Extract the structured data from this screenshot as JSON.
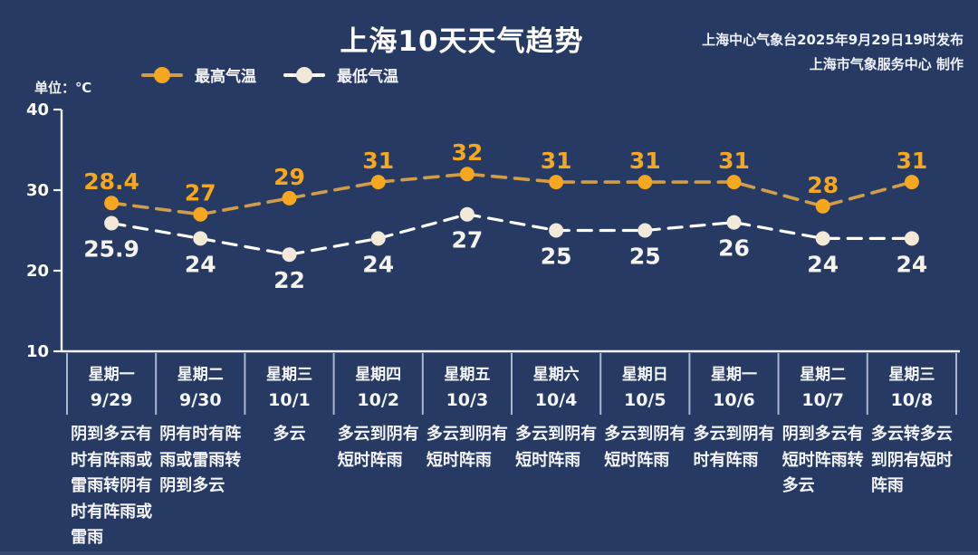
{
  "header": {
    "title": "上海10天天气趋势",
    "attribution_line1": "上海中心气象台2025年9月29日19时发布",
    "attribution_line2": "上海市气象服务中心 制作"
  },
  "unit_label": "单位：℃",
  "legend": {
    "high_label": "最高气温",
    "low_label": "最低气温"
  },
  "colors": {
    "background": "#263a64",
    "text": "#ffffff",
    "axis": "#f2f3f7",
    "divider": "#c3cde2",
    "high_marker": "#f5a71f",
    "high_line": "#d09e4b",
    "high_label": "#f5a71f",
    "low_marker": "#f2e9d8",
    "low_line": "#ffffff",
    "low_label": "#f5f3ee"
  },
  "chart_data": {
    "type": "line",
    "title": "上海10天天气趋势",
    "ylabel": "单位：℃",
    "ylim": [
      10,
      40
    ],
    "yticks": [
      40,
      30,
      20,
      10
    ],
    "grid": false,
    "legend_position": "top-left",
    "line_style": "dashed",
    "categories": [
      "9/29",
      "9/30",
      "10/1",
      "10/2",
      "10/3",
      "10/4",
      "10/5",
      "10/6",
      "10/7",
      "10/8"
    ],
    "series": [
      {
        "name": "最高气温",
        "values": [
          28.4,
          27,
          29,
          31,
          32,
          31,
          31,
          31,
          28,
          31
        ],
        "marker_color": "#f5a71f",
        "line_color": "#d09e4b",
        "label_color": "#f5a71f"
      },
      {
        "name": "最低气温",
        "values": [
          25.9,
          24,
          22,
          24,
          27,
          25,
          25,
          26,
          24,
          24
        ],
        "marker_color": "#f2e9d8",
        "line_color": "#ffffff",
        "label_color": "#f5f3ee"
      }
    ]
  },
  "days": [
    {
      "weekday": "星期一",
      "date": "9/29",
      "weather": [
        "阴到多云有",
        "时有阵雨或",
        "雷雨转阴有",
        "时有阵雨或",
        "雷雨"
      ]
    },
    {
      "weekday": "星期二",
      "date": "9/30",
      "weather": [
        "阴有时有阵",
        "雨或雷雨转",
        "阴到多云"
      ]
    },
    {
      "weekday": "星期三",
      "date": "10/1",
      "weather": [
        "多云"
      ]
    },
    {
      "weekday": "星期四",
      "date": "10/2",
      "weather": [
        "多云到阴有",
        "短时阵雨"
      ]
    },
    {
      "weekday": "星期五",
      "date": "10/3",
      "weather": [
        "多云到阴有",
        "短时阵雨"
      ]
    },
    {
      "weekday": "星期六",
      "date": "10/4",
      "weather": [
        "多云到阴有",
        "短时阵雨"
      ]
    },
    {
      "weekday": "星期日",
      "date": "10/5",
      "weather": [
        "多云到阴有",
        "短时阵雨"
      ]
    },
    {
      "weekday": "星期一",
      "date": "10/6",
      "weather": [
        "多云到阴有",
        "时有阵雨"
      ]
    },
    {
      "weekday": "星期二",
      "date": "10/7",
      "weather": [
        "阴到多云有",
        "短时阵雨转",
        "多云"
      ]
    },
    {
      "weekday": "星期三",
      "date": "10/8",
      "weather": [
        "多云转多云",
        "到阴有短时",
        "阵雨"
      ]
    }
  ]
}
